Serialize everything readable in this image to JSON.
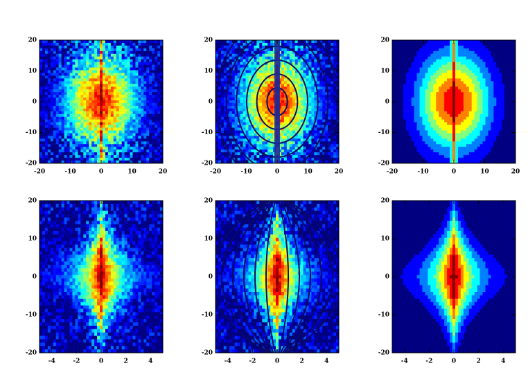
{
  "chart_data": [
    {
      "type": "heatmap",
      "colormap": "jet",
      "xlim": [
        -20,
        20
      ],
      "ylim": [
        -20,
        20
      ],
      "xticks": [
        -20,
        -10,
        0,
        10,
        20
      ],
      "yticks": [
        -20,
        -10,
        0,
        10,
        20
      ]
    },
    {
      "type": "contour",
      "colormap": "jet",
      "xlim": [
        -20,
        20
      ],
      "ylim": [
        -20,
        20
      ],
      "xticks": [
        -20,
        -10,
        0,
        10,
        20
      ],
      "yticks": [
        -20,
        -10,
        0,
        10,
        20
      ]
    },
    {
      "type": "filled-contour",
      "colormap": "jet",
      "xlim": [
        -20,
        20
      ],
      "ylim": [
        -20,
        20
      ],
      "xticks": [
        -20,
        -10,
        0,
        10,
        20
      ],
      "yticks": [
        -20,
        -10,
        0,
        10,
        20
      ]
    },
    {
      "type": "heatmap",
      "colormap": "jet",
      "xlim": [
        -5,
        5
      ],
      "ylim": [
        -20,
        20
      ],
      "xticks": [
        -4,
        -2,
        0,
        2,
        4
      ],
      "yticks": [
        -20,
        -10,
        0,
        10,
        20
      ]
    },
    {
      "type": "contour",
      "colormap": "jet",
      "xlim": [
        -5,
        5
      ],
      "ylim": [
        -20,
        20
      ],
      "xticks": [
        -4,
        -2,
        0,
        2,
        4
      ],
      "yticks": [
        -20,
        -10,
        0,
        10,
        20
      ]
    },
    {
      "type": "filled-contour",
      "colormap": "jet",
      "xlim": [
        -5,
        5
      ],
      "ylim": [
        -20,
        20
      ],
      "xticks": [
        -4,
        -2,
        0,
        2,
        4
      ],
      "yticks": [
        -20,
        -10,
        0,
        10,
        20
      ]
    }
  ]
}
